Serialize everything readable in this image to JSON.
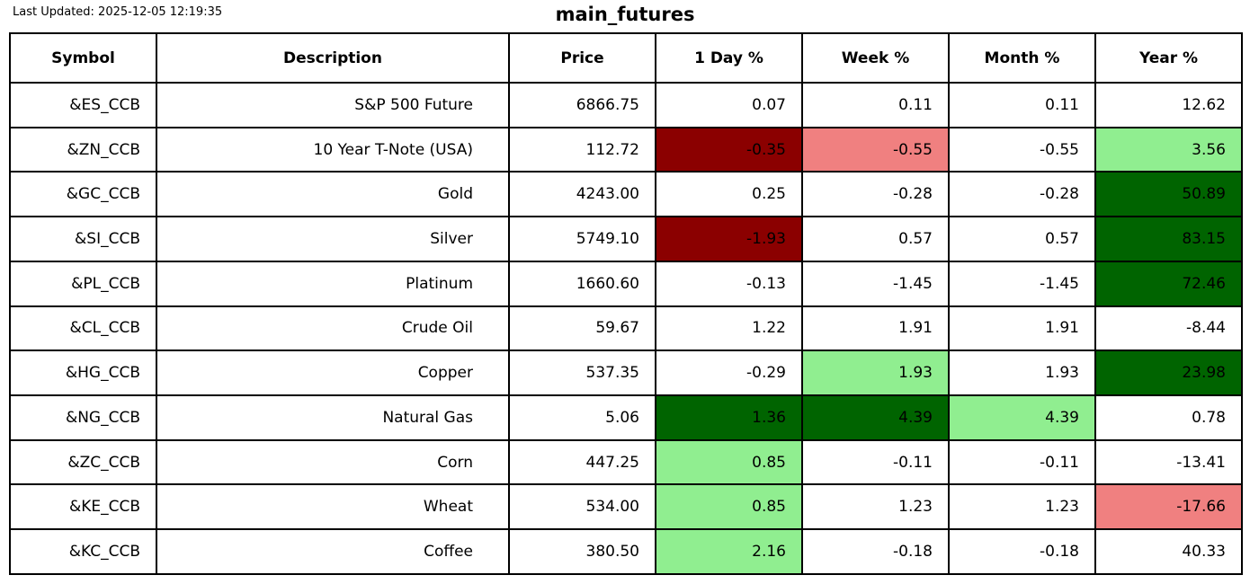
{
  "header": {
    "last_updated": "Last Updated: 2025-12-05 12:19:35",
    "title": "main_futures"
  },
  "colors": {
    "none": "#FFFFFF",
    "dark_red": "#8B0000",
    "light_red": "#F08080",
    "dark_green": "#006400",
    "light_green": "#90EE90",
    "border": "#000000",
    "text": "#000000"
  },
  "chart_data": {
    "type": "table",
    "columns": [
      "Symbol",
      "Description",
      "Price",
      "1 Day %",
      "Week %",
      "Month %",
      "Year %"
    ],
    "rows": [
      {
        "cells": [
          "&ES_CCB",
          "S&P 500 Future",
          "6866.75",
          "0.07",
          "0.11",
          "0.11",
          "12.62"
        ],
        "cell_colors": [
          "none",
          "none",
          "none",
          "none",
          "none",
          "none",
          "none"
        ]
      },
      {
        "cells": [
          "&ZN_CCB",
          "10 Year T-Note (USA)",
          "112.72",
          "-0.35",
          "-0.55",
          "-0.55",
          "3.56"
        ],
        "cell_colors": [
          "none",
          "none",
          "none",
          "dark_red",
          "light_red",
          "none",
          "light_green"
        ]
      },
      {
        "cells": [
          "&GC_CCB",
          "Gold",
          "4243.00",
          "0.25",
          "-0.28",
          "-0.28",
          "50.89"
        ],
        "cell_colors": [
          "none",
          "none",
          "none",
          "none",
          "none",
          "none",
          "dark_green"
        ]
      },
      {
        "cells": [
          "&SI_CCB",
          "Silver",
          "5749.10",
          "-1.93",
          "0.57",
          "0.57",
          "83.15"
        ],
        "cell_colors": [
          "none",
          "none",
          "none",
          "dark_red",
          "none",
          "none",
          "dark_green"
        ]
      },
      {
        "cells": [
          "&PL_CCB",
          "Platinum",
          "1660.60",
          "-0.13",
          "-1.45",
          "-1.45",
          "72.46"
        ],
        "cell_colors": [
          "none",
          "none",
          "none",
          "none",
          "none",
          "none",
          "dark_green"
        ]
      },
      {
        "cells": [
          "&CL_CCB",
          "Crude Oil",
          "59.67",
          "1.22",
          "1.91",
          "1.91",
          "-8.44"
        ],
        "cell_colors": [
          "none",
          "none",
          "none",
          "none",
          "none",
          "none",
          "none"
        ]
      },
      {
        "cells": [
          "&HG_CCB",
          "Copper",
          "537.35",
          "-0.29",
          "1.93",
          "1.93",
          "23.98"
        ],
        "cell_colors": [
          "none",
          "none",
          "none",
          "none",
          "light_green",
          "none",
          "dark_green"
        ]
      },
      {
        "cells": [
          "&NG_CCB",
          "Natural Gas",
          "5.06",
          "1.36",
          "4.39",
          "4.39",
          "0.78"
        ],
        "cell_colors": [
          "none",
          "none",
          "none",
          "dark_green",
          "dark_green",
          "light_green",
          "none"
        ]
      },
      {
        "cells": [
          "&ZC_CCB",
          "Corn",
          "447.25",
          "0.85",
          "-0.11",
          "-0.11",
          "-13.41"
        ],
        "cell_colors": [
          "none",
          "none",
          "none",
          "light_green",
          "none",
          "none",
          "none"
        ]
      },
      {
        "cells": [
          "&KE_CCB",
          "Wheat",
          "534.00",
          "0.85",
          "1.23",
          "1.23",
          "-17.66"
        ],
        "cell_colors": [
          "none",
          "none",
          "none",
          "light_green",
          "none",
          "none",
          "light_red"
        ]
      },
      {
        "cells": [
          "&KC_CCB",
          "Coffee",
          "380.50",
          "2.16",
          "-0.18",
          "-0.18",
          "40.33"
        ],
        "cell_colors": [
          "none",
          "none",
          "none",
          "light_green",
          "none",
          "none",
          "none"
        ]
      }
    ]
  }
}
